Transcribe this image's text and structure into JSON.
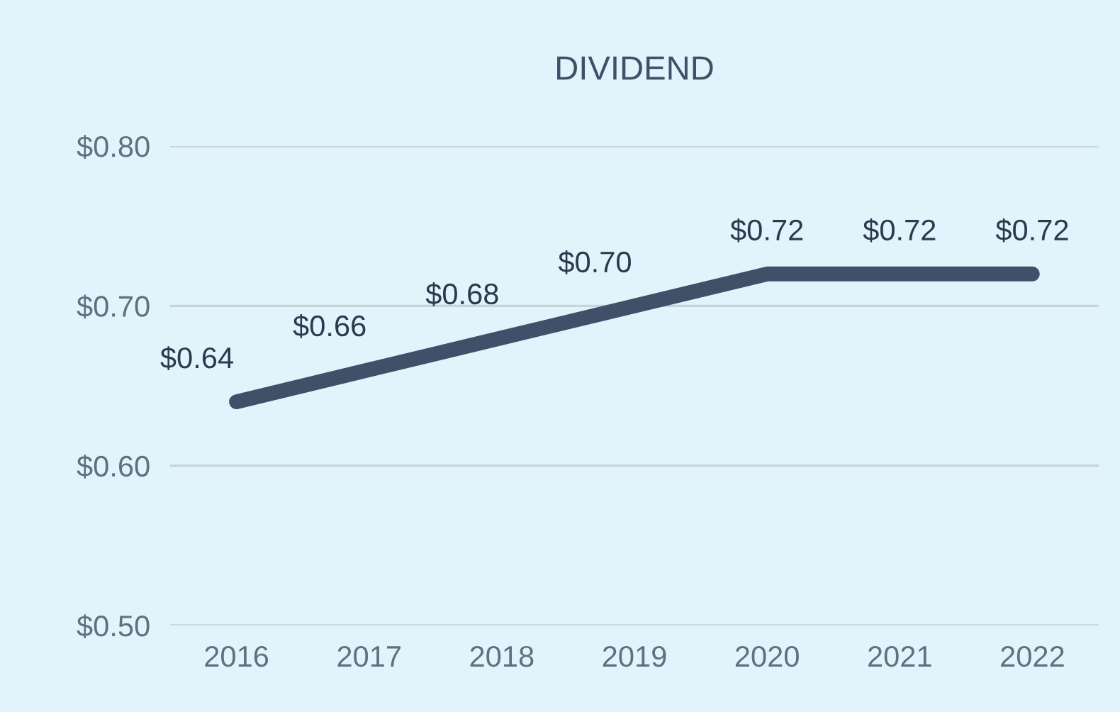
{
  "chart_data": {
    "type": "line",
    "title": "DIVIDEND",
    "categories": [
      "2016",
      "2017",
      "2018",
      "2019",
      "2020",
      "2021",
      "2022"
    ],
    "series": [
      {
        "color": "#3f5068",
        "values": [
          0.64,
          0.66,
          0.68,
          0.7,
          0.72,
          0.72,
          0.72
        ]
      }
    ],
    "value_labels": [
      "$0.64",
      "$0.66",
      "$0.68",
      "$0.70",
      "$0.72",
      "$0.72",
      "$0.72"
    ],
    "ylim": [
      0.5,
      0.8
    ],
    "yticks": [
      {
        "value": 0.5,
        "label": "$0.50"
      },
      {
        "value": 0.6,
        "label": "$0.60"
      },
      {
        "value": 0.7,
        "label": "$0.70"
      },
      {
        "value": 0.8,
        "label": "$0.80"
      }
    ],
    "grid": "y",
    "marker": "none",
    "line_style": "solid",
    "legend": false
  }
}
